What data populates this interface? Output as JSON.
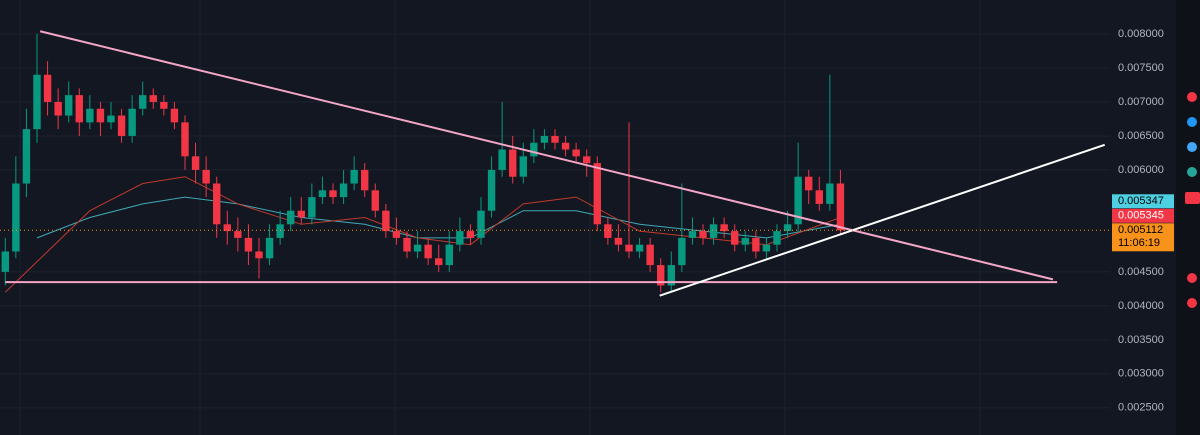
{
  "chart_data": {
    "type": "candlestick",
    "xlim": [
      -0.5,
      104.5
    ],
    "ylim": [
      0.0021,
      0.0085
    ],
    "yticks": [
      {
        "value": 0.008,
        "label": "0.008000"
      },
      {
        "value": 0.0075,
        "label": "0.007500"
      },
      {
        "value": 0.007,
        "label": "0.007000"
      },
      {
        "value": 0.0065,
        "label": "0.006500"
      },
      {
        "value": 0.006,
        "label": "0.006000"
      },
      {
        "value": 0.0045,
        "label": "0.004500"
      },
      {
        "value": 0.004,
        "label": "0.004000"
      },
      {
        "value": 0.0035,
        "label": "0.003500"
      },
      {
        "value": 0.003,
        "label": "0.003000"
      },
      {
        "value": 0.0025,
        "label": "0.002500"
      }
    ],
    "grid": true,
    "up_color": "#089981",
    "down_color": "#f23645",
    "open": [
      0.0045,
      0.0048,
      0.0058,
      0.0066,
      0.0074,
      0.007,
      0.0068,
      0.0071,
      0.0067,
      0.0069,
      0.0067,
      0.0068,
      0.0065,
      0.0069,
      0.0071,
      0.007,
      0.0069,
      0.0067,
      0.0062,
      0.006,
      0.0058,
      0.0052,
      0.0051,
      0.005,
      0.0048,
      0.0047,
      0.005,
      0.0052,
      0.0054,
      0.0053,
      0.0056,
      0.0057,
      0.0056,
      0.0058,
      0.006,
      0.0057,
      0.0054,
      0.0051,
      0.005,
      0.0048,
      0.0049,
      0.0047,
      0.0046,
      0.0049,
      0.0051,
      0.005,
      0.0054,
      0.006,
      0.0063,
      0.0059,
      0.0062,
      0.0064,
      0.0065,
      0.0064,
      0.0063,
      0.0062,
      0.0061,
      0.0052,
      0.005,
      0.0049,
      0.0048,
      0.0049,
      0.0046,
      0.0043,
      0.0046,
      0.005,
      0.0051,
      0.005,
      0.0052,
      0.0051,
      0.0049,
      0.005,
      0.0048,
      0.0049,
      0.0051,
      0.0052,
      0.0059,
      0.0057,
      0.0055,
      0.0058
    ],
    "high": [
      0.005,
      0.0062,
      0.0069,
      0.008,
      0.0076,
      0.0072,
      0.0073,
      0.0072,
      0.0071,
      0.007,
      0.007,
      0.0069,
      0.0071,
      0.0073,
      0.0072,
      0.0071,
      0.007,
      0.0068,
      0.0064,
      0.0062,
      0.0059,
      0.0054,
      0.0053,
      0.0052,
      0.005,
      0.0052,
      0.0054,
      0.0056,
      0.0056,
      0.0058,
      0.0059,
      0.0058,
      0.006,
      0.0062,
      0.0061,
      0.0058,
      0.0055,
      0.0053,
      0.0051,
      0.0051,
      0.005,
      0.0049,
      0.0051,
      0.0053,
      0.0052,
      0.0056,
      0.0062,
      0.007,
      0.0065,
      0.0064,
      0.0066,
      0.0066,
      0.0066,
      0.0065,
      0.0064,
      0.0063,
      0.0062,
      0.0053,
      0.0052,
      0.0067,
      0.005,
      0.005,
      0.0047,
      0.0048,
      0.0058,
      0.0053,
      0.0052,
      0.0053,
      0.0053,
      0.0052,
      0.0051,
      0.0051,
      0.005,
      0.0052,
      0.0054,
      0.0064,
      0.006,
      0.0059,
      0.0074,
      0.006
    ],
    "low": [
      0.0043,
      0.0047,
      0.0056,
      0.0064,
      0.0068,
      0.0066,
      0.0067,
      0.0065,
      0.0066,
      0.0065,
      0.0066,
      0.0064,
      0.0064,
      0.0068,
      0.0069,
      0.0068,
      0.0066,
      0.006,
      0.0058,
      0.0056,
      0.005,
      0.0049,
      0.0048,
      0.0046,
      0.0044,
      0.0046,
      0.0049,
      0.0051,
      0.0052,
      0.0052,
      0.0055,
      0.0055,
      0.0055,
      0.0057,
      0.0056,
      0.0053,
      0.005,
      0.0049,
      0.0047,
      0.0047,
      0.0046,
      0.0045,
      0.0045,
      0.0048,
      0.0049,
      0.0049,
      0.0053,
      0.0059,
      0.0058,
      0.0058,
      0.0061,
      0.0063,
      0.0063,
      0.0062,
      0.0061,
      0.0059,
      0.0051,
      0.0049,
      0.0048,
      0.0047,
      0.0047,
      0.0045,
      0.0042,
      0.0042,
      0.0045,
      0.0049,
      0.0049,
      0.0049,
      0.005,
      0.0048,
      0.0048,
      0.0047,
      0.0047,
      0.0048,
      0.005,
      0.0051,
      0.0055,
      0.0054,
      0.0054,
      0.00505
    ],
    "close": [
      0.0048,
      0.0058,
      0.0066,
      0.0074,
      0.007,
      0.0068,
      0.0071,
      0.0067,
      0.0069,
      0.0067,
      0.0068,
      0.0065,
      0.0069,
      0.0071,
      0.007,
      0.0069,
      0.0067,
      0.0062,
      0.006,
      0.0058,
      0.0052,
      0.0051,
      0.005,
      0.0048,
      0.0047,
      0.005,
      0.0052,
      0.0054,
      0.0053,
      0.0056,
      0.0057,
      0.0056,
      0.0058,
      0.006,
      0.0057,
      0.0054,
      0.0051,
      0.005,
      0.0048,
      0.0049,
      0.0047,
      0.0046,
      0.0049,
      0.0051,
      0.005,
      0.0054,
      0.006,
      0.0063,
      0.0059,
      0.0062,
      0.0064,
      0.0065,
      0.0064,
      0.0063,
      0.0062,
      0.0061,
      0.0052,
      0.005,
      0.0049,
      0.0048,
      0.0049,
      0.0046,
      0.0043,
      0.0046,
      0.005,
      0.0051,
      0.005,
      0.0052,
      0.0051,
      0.0049,
      0.005,
      0.0048,
      0.0049,
      0.0051,
      0.0052,
      0.0059,
      0.0057,
      0.0055,
      0.0058,
      0.005112
    ],
    "moving_averages": [
      {
        "color": "#3fa9b5",
        "x": [
          3,
          8,
          13,
          17,
          22,
          28,
          34,
          39,
          44,
          49,
          54,
          60,
          66,
          72,
          79
        ],
        "values": [
          0.005,
          0.0053,
          0.0055,
          0.0056,
          0.0055,
          0.0053,
          0.0052,
          0.005,
          0.005,
          0.0054,
          0.0054,
          0.0052,
          0.0051,
          0.005,
          0.0052
        ]
      },
      {
        "color": "#c0392b",
        "x": [
          0,
          4,
          8,
          13,
          17,
          22,
          28,
          34,
          39,
          44,
          49,
          54,
          60,
          66,
          72,
          79
        ],
        "values": [
          0.0042,
          0.0048,
          0.0054,
          0.0058,
          0.0059,
          0.0055,
          0.0052,
          0.0053,
          0.005,
          0.0049,
          0.0055,
          0.0056,
          0.0051,
          0.005,
          0.0049,
          0.0053
        ]
      }
    ],
    "trendlines": [
      {
        "color": "#f4a6c6",
        "x": [
          3.3,
          99.1
        ],
        "values": [
          0.00804,
          0.00439
        ]
      },
      {
        "color": "#f4a6c6",
        "x": [
          0,
          99.5
        ],
        "values": [
          0.00435,
          0.00435
        ]
      },
      {
        "color": "#ffffff",
        "x": [
          61.9,
          104
        ],
        "values": [
          0.00415,
          0.00637
        ]
      }
    ],
    "price_labels": [
      {
        "value": 0.005347,
        "color": "#4dd0e1",
        "text_color": "#000000"
      },
      {
        "value": 0.005345,
        "color": "#f23645",
        "text_color": "#ffffff"
      }
    ],
    "last_price": {
      "value": 0.005112,
      "countdown": "11:06:19",
      "color": "#f7931a"
    }
  }
}
